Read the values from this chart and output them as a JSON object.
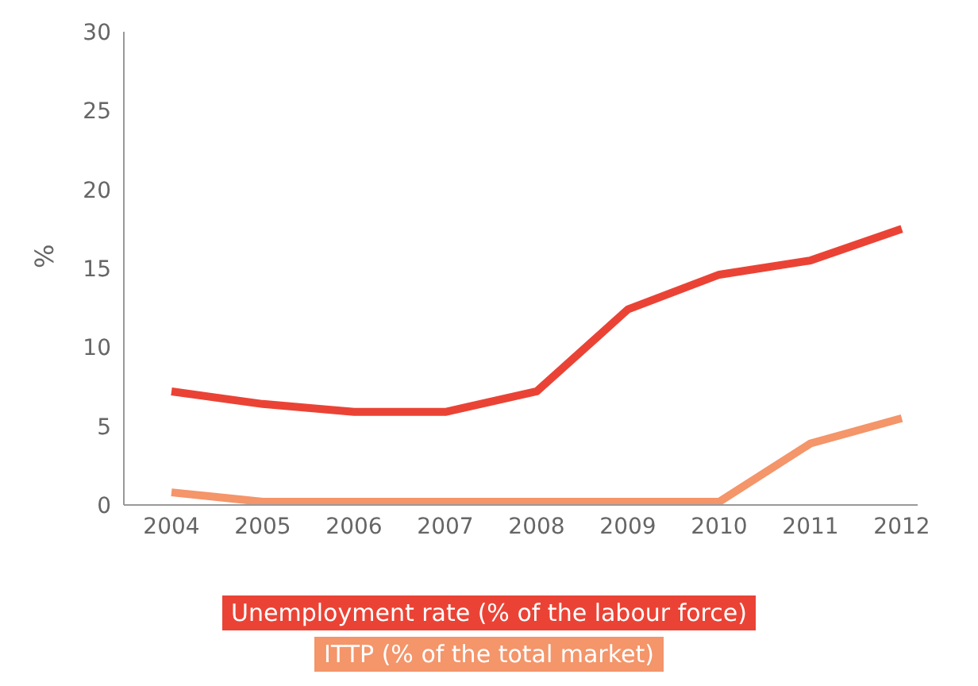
{
  "chart_data": {
    "type": "line",
    "ylabel": "%",
    "categories": [
      "2004",
      "2005",
      "2006",
      "2007",
      "2008",
      "2009",
      "2010",
      "2011",
      "2012"
    ],
    "series": [
      {
        "name": "Unemployment rate (% of the labour force)",
        "color": "#ea4335",
        "values": [
          7.2,
          6.4,
          5.9,
          5.9,
          7.2,
          12.4,
          14.6,
          15.5,
          17.5
        ]
      },
      {
        "name": "ITTP (% of the total market)",
        "color": "#f4956a",
        "values": [
          0.8,
          0.2,
          0.2,
          0.2,
          0.2,
          0.2,
          0.2,
          3.9,
          5.5
        ]
      }
    ],
    "ylim": [
      0,
      30
    ],
    "yticks": [
      0,
      5,
      10,
      15,
      20,
      25,
      30
    ],
    "grid": false,
    "legend": "bottom",
    "marker": "none"
  }
}
